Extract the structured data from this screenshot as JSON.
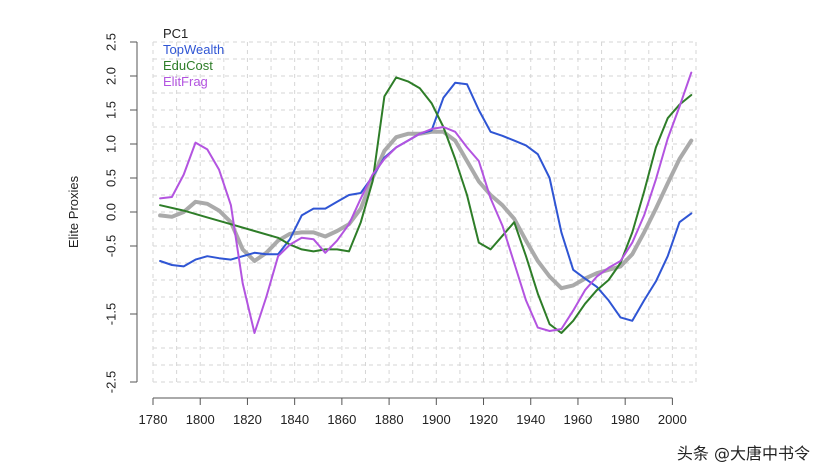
{
  "chart_data": {
    "type": "line",
    "title": "",
    "xlabel": "",
    "ylabel": "Elite Proxies",
    "xlim": [
      1780,
      2010
    ],
    "ylim": [
      -2.5,
      2.5
    ],
    "x_ticks": [
      1780,
      1800,
      1820,
      1840,
      1860,
      1880,
      1900,
      1920,
      1940,
      1960,
      1980,
      2000
    ],
    "y_ticks": [
      "2.5",
      "2.0",
      "1.5",
      "1.0",
      "0.5",
      "0.0",
      "-0.5",
      "-1.5",
      "-2.5"
    ],
    "y_tick_values": [
      2.5,
      2.0,
      1.5,
      1.0,
      0.5,
      0.0,
      -0.5,
      -1.5,
      -2.5
    ],
    "grid": true,
    "legend_position": "top-left",
    "series": [
      {
        "name": "PC1",
        "color": "#aaaaaa",
        "width": 4,
        "x": [
          1783,
          1788,
          1793,
          1798,
          1803,
          1808,
          1813,
          1818,
          1823,
          1828,
          1833,
          1838,
          1843,
          1848,
          1853,
          1858,
          1863,
          1868,
          1873,
          1878,
          1883,
          1888,
          1893,
          1898,
          1903,
          1908,
          1913,
          1918,
          1923,
          1928,
          1933,
          1938,
          1943,
          1948,
          1953,
          1958,
          1963,
          1968,
          1973,
          1978,
          1983,
          1988,
          1993,
          1998,
          2003,
          2008
        ],
        "y": [
          -0.05,
          -0.07,
          0.0,
          0.15,
          0.12,
          0.02,
          -0.15,
          -0.55,
          -0.72,
          -0.6,
          -0.42,
          -0.32,
          -0.3,
          -0.3,
          -0.36,
          -0.28,
          -0.18,
          0.05,
          0.5,
          0.9,
          1.1,
          1.15,
          1.15,
          1.18,
          1.18,
          1.05,
          0.75,
          0.45,
          0.25,
          0.1,
          -0.1,
          -0.42,
          -0.72,
          -0.95,
          -1.12,
          -1.08,
          -0.98,
          -0.9,
          -0.85,
          -0.8,
          -0.62,
          -0.3,
          0.05,
          0.42,
          0.78,
          1.05
        ]
      },
      {
        "name": "TopWealth",
        "color": "#2f55d4",
        "width": 2,
        "x": [
          1783,
          1788,
          1793,
          1798,
          1803,
          1808,
          1813,
          1818,
          1823,
          1828,
          1833,
          1838,
          1843,
          1848,
          1853,
          1858,
          1863,
          1868,
          1873,
          1878,
          1883,
          1888,
          1893,
          1898,
          1903,
          1908,
          1913,
          1918,
          1923,
          1928,
          1933,
          1938,
          1943,
          1948,
          1953,
          1958,
          1963,
          1968,
          1973,
          1978,
          1983,
          1988,
          1993,
          1998,
          2003,
          2008
        ],
        "y": [
          -0.72,
          -0.78,
          -0.8,
          -0.7,
          -0.65,
          -0.68,
          -0.7,
          -0.65,
          -0.6,
          -0.62,
          -0.62,
          -0.4,
          -0.05,
          0.05,
          0.05,
          0.15,
          0.25,
          0.28,
          0.52,
          0.8,
          0.95,
          1.05,
          1.15,
          1.2,
          1.68,
          1.9,
          1.88,
          1.5,
          1.18,
          1.12,
          1.05,
          0.98,
          0.85,
          0.5,
          -0.3,
          -0.85,
          -0.98,
          -1.1,
          -1.3,
          -1.55,
          -1.6,
          -1.3,
          -1.02,
          -0.65,
          -0.15,
          -0.02
        ]
      },
      {
        "name": "EduCost",
        "color": "#2e7d28",
        "width": 2,
        "x": [
          1783,
          1793,
          1803,
          1813,
          1823,
          1833,
          1838,
          1843,
          1848,
          1853,
          1858,
          1863,
          1868,
          1873,
          1878,
          1883,
          1888,
          1893,
          1898,
          1903,
          1908,
          1913,
          1918,
          1923,
          1928,
          1933,
          1938,
          1943,
          1948,
          1953,
          1958,
          1963,
          1968,
          1973,
          1978,
          1983,
          1988,
          1993,
          1998,
          2003,
          2008
        ],
        "y": [
          0.1,
          0.02,
          -0.08,
          -0.18,
          -0.28,
          -0.38,
          -0.48,
          -0.55,
          -0.58,
          -0.55,
          -0.55,
          -0.58,
          -0.15,
          0.45,
          1.7,
          1.98,
          1.92,
          1.82,
          1.6,
          1.25,
          0.78,
          0.25,
          -0.45,
          -0.55,
          -0.35,
          -0.15,
          -0.65,
          -1.2,
          -1.65,
          -1.78,
          -1.6,
          -1.35,
          -1.15,
          -1.0,
          -0.75,
          -0.3,
          0.3,
          0.95,
          1.38,
          1.58,
          1.72
        ]
      },
      {
        "name": "ElitFrag",
        "color": "#b354e0",
        "width": 2,
        "x": [
          1783,
          1788,
          1793,
          1798,
          1803,
          1808,
          1813,
          1818,
          1823,
          1828,
          1833,
          1838,
          1843,
          1848,
          1853,
          1858,
          1863,
          1868,
          1873,
          1878,
          1883,
          1888,
          1893,
          1898,
          1903,
          1908,
          1913,
          1918,
          1923,
          1928,
          1933,
          1938,
          1943,
          1948,
          1953,
          1958,
          1963,
          1968,
          1973,
          1978,
          1983,
          1988,
          1993,
          1998,
          2003,
          2008
        ],
        "y": [
          0.2,
          0.22,
          0.55,
          1.02,
          0.92,
          0.62,
          0.1,
          -1.05,
          -1.78,
          -1.25,
          -0.65,
          -0.48,
          -0.38,
          -0.4,
          -0.6,
          -0.42,
          -0.18,
          0.2,
          0.55,
          0.78,
          0.95,
          1.05,
          1.15,
          1.22,
          1.25,
          1.18,
          0.95,
          0.75,
          0.2,
          -0.2,
          -0.75,
          -1.3,
          -1.7,
          -1.75,
          -1.72,
          -1.45,
          -1.15,
          -0.95,
          -0.82,
          -0.72,
          -0.45,
          -0.05,
          0.48,
          1.08,
          1.55,
          2.05
        ]
      }
    ]
  },
  "watermark": "头条 @大唐中书令"
}
